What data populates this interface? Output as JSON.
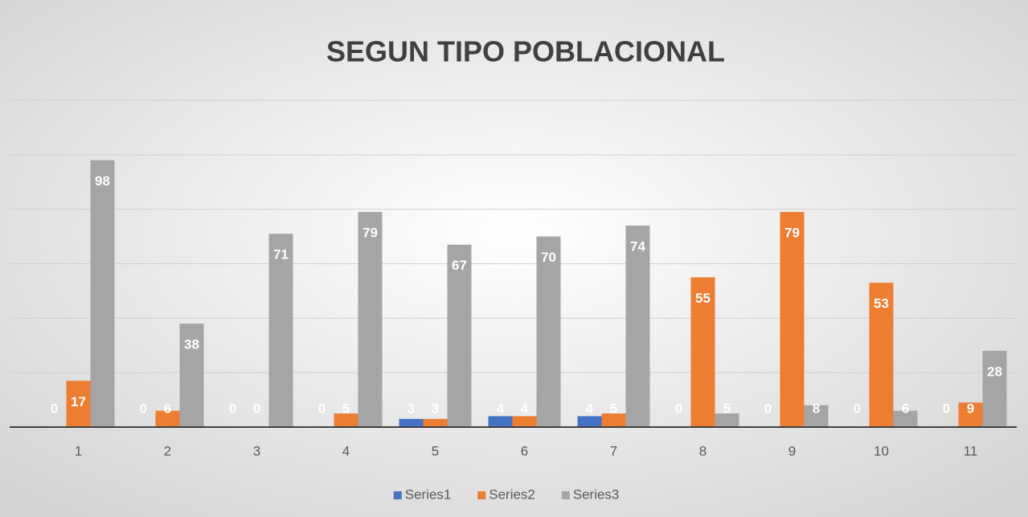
{
  "chart_data": {
    "type": "bar",
    "title": "SEGUN TIPO POBLACIONAL",
    "categories": [
      "1",
      "2",
      "3",
      "4",
      "5",
      "6",
      "7",
      "8",
      "9",
      "10",
      "11"
    ],
    "series": [
      {
        "name": "Series1",
        "color": "#4472c4",
        "values": [
          0,
          0,
          0,
          0,
          3,
          4,
          4,
          0,
          0,
          0,
          0
        ]
      },
      {
        "name": "Series2",
        "color": "#ed7d31",
        "values": [
          17,
          6,
          0,
          5,
          3,
          4,
          5,
          55,
          79,
          53,
          9
        ]
      },
      {
        "name": "Series3",
        "color": "#a5a5a5",
        "values": [
          98,
          38,
          71,
          79,
          67,
          70,
          74,
          5,
          8,
          6,
          28
        ]
      }
    ],
    "ylim": [
      0,
      120
    ],
    "yticks": [
      0,
      20,
      40,
      60,
      80,
      100,
      120
    ],
    "grid": true,
    "legend": "bottom"
  }
}
